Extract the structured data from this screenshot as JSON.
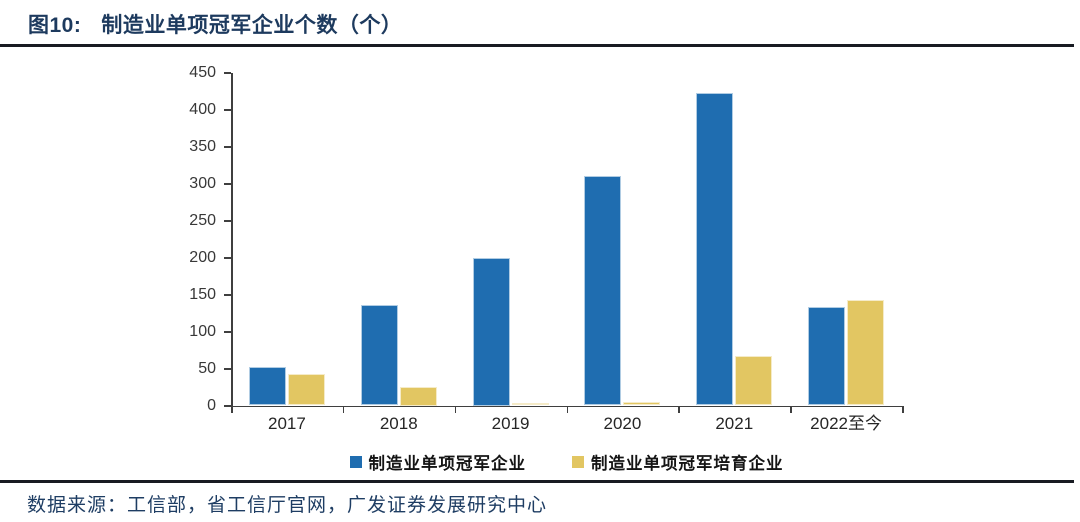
{
  "header": {
    "figure_label": "图10:",
    "title": "制造业单项冠军企业个数（个）"
  },
  "footer": {
    "source": "数据来源：工信部，省工信厅官网，广发证券发展研究中心"
  },
  "colors": {
    "title_navy": "#1d3a5e",
    "axis_gray": "#3f3f3f",
    "divider_dark": "#181b22",
    "series_blue": "#1F6DB0",
    "series_yellow": "#E2C662"
  },
  "chart_data": {
    "type": "bar",
    "title": "制造业单项冠军企业个数（个）",
    "categories": [
      "2017",
      "2018",
      "2019",
      "2020",
      "2021",
      "2022至今"
    ],
    "series": [
      {
        "name": "制造业单项冠军企业",
        "color": "#1F6DB0",
        "values": [
          52,
          136,
          200,
          310,
          422,
          133
        ]
      },
      {
        "name": "制造业单项冠军培育企业",
        "color": "#E2C662",
        "values": [
          43,
          25,
          3,
          5,
          67,
          142
        ]
      }
    ],
    "xlabel": "",
    "ylabel": "",
    "ylim": [
      0,
      450
    ],
    "yticks": [
      0,
      50,
      100,
      150,
      200,
      250,
      300,
      350,
      400,
      450
    ],
    "grid": false,
    "legend_position": "bottom"
  }
}
